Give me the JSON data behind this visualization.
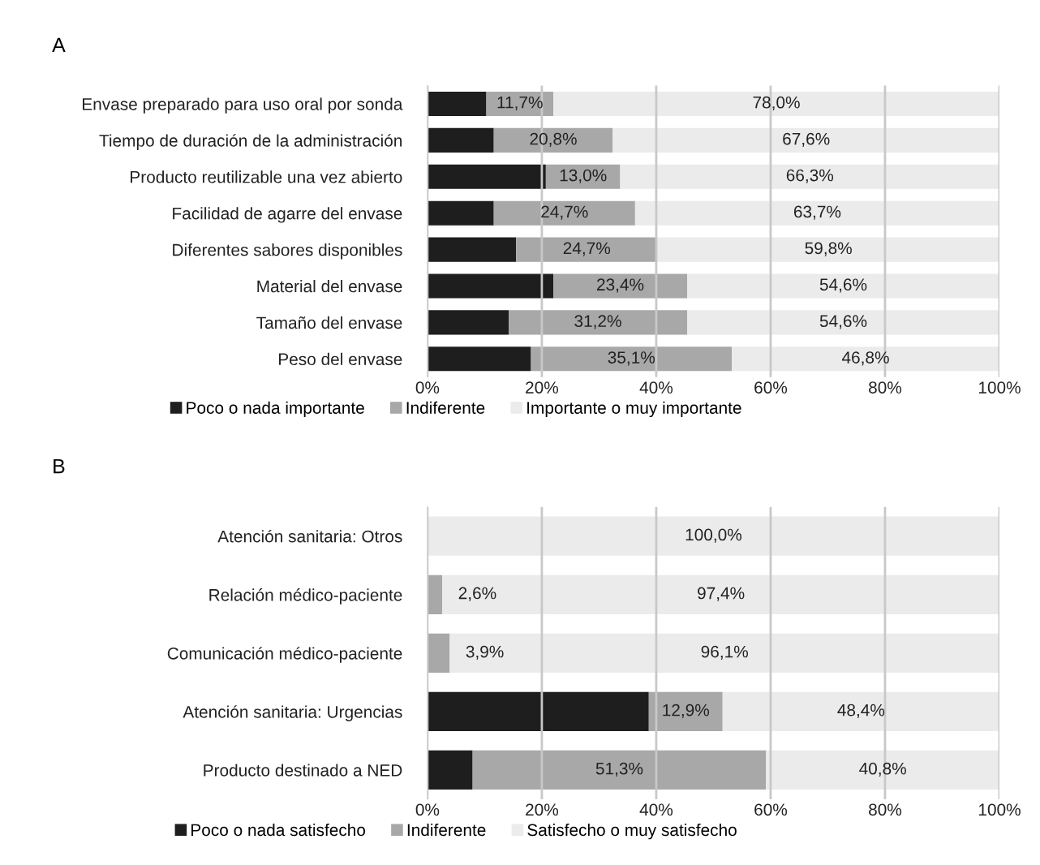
{
  "chart_data": [
    {
      "type": "bar",
      "title": "A",
      "orientation": "horizontal",
      "stacked": true,
      "grid": "x",
      "legend": "bottom",
      "categories": [
        "Envase preparado para uso oral por sonda",
        "Tiempo de duración de la administración",
        "Producto reutilizable una vez abierto",
        "Facilidad de agarre del envase",
        "Diferentes sabores disponibles",
        "Material del envase",
        "Tamaño del envase",
        "Peso del envase"
      ],
      "xlim": [
        0,
        100
      ],
      "xticks": [
        {
          "value": 0,
          "label": "0%"
        },
        {
          "value": 20,
          "label": "20%"
        },
        {
          "value": 40,
          "label": "40%"
        },
        {
          "value": 60,
          "label": "60%"
        },
        {
          "value": 80,
          "label": "80%"
        },
        {
          "value": 100,
          "label": "100%"
        }
      ],
      "series": [
        {
          "name": "Poco o nada importante",
          "color": "#1e1e1e",
          "values": [
            10.3,
            11.6,
            20.7,
            11.6,
            15.5,
            22.0,
            14.2,
            18.1
          ]
        },
        {
          "name": "Indiferente",
          "color": "#a8a8a8",
          "values": [
            11.7,
            20.8,
            13.0,
            24.7,
            24.7,
            23.4,
            31.2,
            35.1
          ],
          "value_labels": [
            "11,7%",
            "20,8%",
            "13,0%",
            "24,7%",
            "24,7%",
            "23,4%",
            "31,2%",
            "35,1%"
          ]
        },
        {
          "name": "Importante o muy importante",
          "color": "#ebebeb",
          "values": [
            78.0,
            67.6,
            66.3,
            63.7,
            59.8,
            54.6,
            54.6,
            46.8
          ],
          "value_labels": [
            "78,0%",
            "67,6%",
            "66,3%",
            "63,7%",
            "59,8%",
            "54,6%",
            "54,6%",
            "46,8%"
          ]
        }
      ]
    },
    {
      "type": "bar",
      "title": "B",
      "orientation": "horizontal",
      "stacked": true,
      "grid": "x",
      "legend": "bottom",
      "categories": [
        "Atención sanitaria: Otros",
        "Relación médico-paciente",
        "Comunicación médico-paciente",
        "Atención sanitaria: Urgencias",
        "Producto destinado a NED"
      ],
      "xlim": [
        0,
        100
      ],
      "xticks": [
        {
          "value": 0,
          "label": "0%"
        },
        {
          "value": 20,
          "label": "20%"
        },
        {
          "value": 40,
          "label": "40%"
        },
        {
          "value": 60,
          "label": "60%"
        },
        {
          "value": 80,
          "label": "80%"
        },
        {
          "value": 100,
          "label": "100%"
        }
      ],
      "series": [
        {
          "name": "Poco o nada satisfecho",
          "color": "#1e1e1e",
          "values": [
            0,
            0,
            0,
            38.7,
            7.9
          ]
        },
        {
          "name": "Indiferente",
          "color": "#a8a8a8",
          "values": [
            0,
            2.6,
            3.9,
            12.9,
            51.3
          ],
          "value_labels": [
            null,
            "2,6%",
            "3,9%",
            "12,9%",
            "51,3%"
          ]
        },
        {
          "name": "Satisfecho o muy satisfecho",
          "color": "#ebebeb",
          "values": [
            100.0,
            97.4,
            96.1,
            48.4,
            40.8
          ],
          "value_labels": [
            "100,0%",
            "97,4%",
            "96,1%",
            "48,4%",
            "40,8%"
          ]
        }
      ]
    }
  ]
}
